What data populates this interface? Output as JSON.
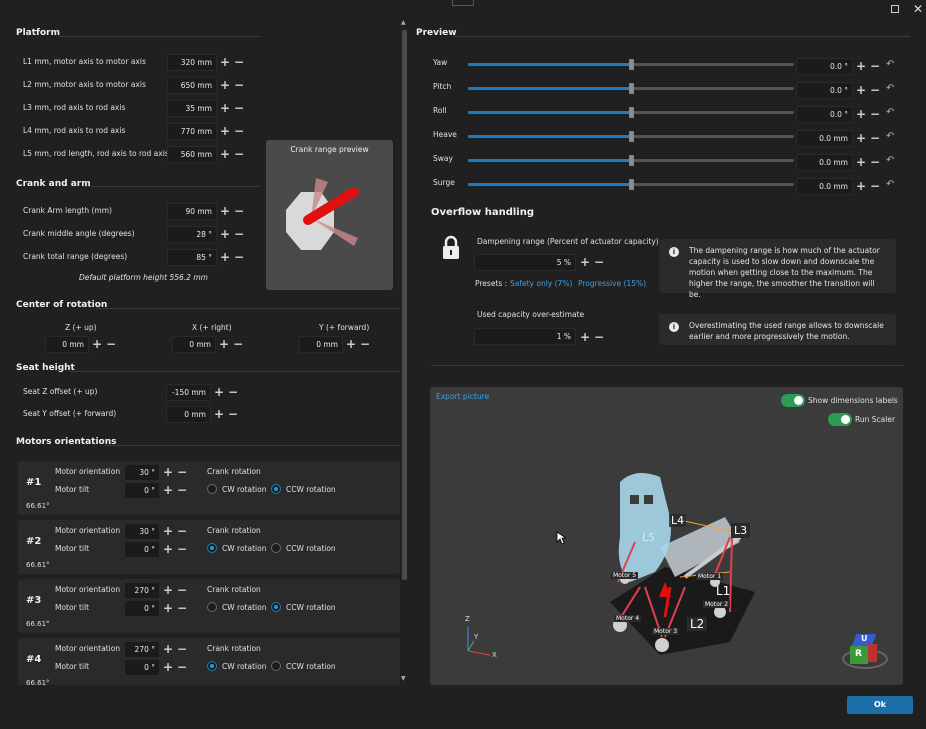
{
  "window": {
    "maximize_icon": "maximize-icon",
    "close_icon": "close-icon"
  },
  "platform": {
    "title": "Platform",
    "rows": [
      {
        "label": "L1 mm, motor axis to motor axis",
        "value": "320 mm"
      },
      {
        "label": "L2 mm, motor axis to motor axis",
        "value": "650 mm"
      },
      {
        "label": "L3 mm, rod axis to rod axis",
        "value": "35 mm"
      },
      {
        "label": "L4 mm, rod axis to rod axis",
        "value": "770 mm"
      },
      {
        "label": "L5 mm, rod length, rod axis to rod axis",
        "value": "560 mm"
      }
    ]
  },
  "crank_preview": {
    "title": "Crank range preview"
  },
  "crank": {
    "title": "Crank and arm",
    "rows": [
      {
        "label": "Crank Arm length (mm)",
        "value": "90 mm"
      },
      {
        "label": "Crank middle angle (degrees)",
        "value": "28 °"
      },
      {
        "label": "Crank total range (degrees)",
        "value": "85 °"
      }
    ],
    "default_height": "Default platform height 556.2 mm"
  },
  "center": {
    "title": "Center of rotation",
    "cols": [
      {
        "label": "Z (+ up)",
        "value": "0 mm"
      },
      {
        "label": "X (+ right)",
        "value": "0 mm"
      },
      {
        "label": "Y (+ forward)",
        "value": "0 mm"
      }
    ]
  },
  "seat": {
    "title": "Seat height",
    "rows": [
      {
        "label": "Seat Z offset (+ up)",
        "value": "-150 mm"
      },
      {
        "label": "Seat Y offset (+ forward)",
        "value": "0 mm"
      }
    ]
  },
  "motors": {
    "title": "Motors orientations",
    "orientation_label": "Motor orientation",
    "tilt_label": "Motor tilt",
    "crank_rotation_label": "Crank rotation",
    "cw_label": "CW rotation",
    "ccw_label": "CCW rotation",
    "items": [
      {
        "id": "#1",
        "orientation": "30 °",
        "tilt": "0 °",
        "angle": "66.61°",
        "cw": false,
        "ccw": true
      },
      {
        "id": "#2",
        "orientation": "30 °",
        "tilt": "0 °",
        "angle": "66.61°",
        "cw": true,
        "ccw": false
      },
      {
        "id": "#3",
        "orientation": "270 °",
        "tilt": "0 °",
        "angle": "66.61°",
        "cw": false,
        "ccw": true
      },
      {
        "id": "#4",
        "orientation": "270 °",
        "tilt": "0 °",
        "angle": "66.61°",
        "cw": true,
        "ccw": false
      }
    ]
  },
  "preview": {
    "title": "Preview",
    "axes": [
      {
        "label": "Yaw",
        "value": "0.0 °",
        "level": 0.5
      },
      {
        "label": "Pitch",
        "value": "0.0 °",
        "level": 0.5
      },
      {
        "label": "Roll",
        "value": "0.0 °",
        "level": 0.5
      },
      {
        "label": "Heave",
        "value": "0.0 mm",
        "level": 0.5
      },
      {
        "label": "Sway",
        "value": "0.0 mm",
        "level": 0.5
      },
      {
        "label": "Surge",
        "value": "0.0 mm",
        "level": 0.5
      }
    ]
  },
  "overflow": {
    "title": "Overflow handling",
    "dampening_label": "Dampening range (Percent of actuator capacity)",
    "dampening_value": "5 %",
    "presets_label": "Presets :",
    "preset_safety": "Safety only (7%)",
    "preset_progressive": "Progressive (15%)",
    "info1": "The dampening range is how much of the actuator capacity is used to slow down and downscale the motion when getting close to the maximum. The higher the range, the smoother the transition will be.",
    "overestimate_label": "Used capacity over-estimate",
    "overestimate_value": "1 %",
    "info2": "Overestimating the used range allows to downscale earlier and more progressively the motion."
  },
  "viewer": {
    "export_label": "Export picture",
    "show_dimensions_label": "Show dimensions labels",
    "run_scaler_label": "Run Scaler",
    "labels": {
      "l1": "L1",
      "l2": "L2",
      "l3": "L3",
      "l4": "L4",
      "l5": "L5"
    },
    "motors": {
      "m1": "Motor 1",
      "m2": "Motor 2",
      "m3": "Motor 3",
      "m4": "Motor 4",
      "m5": "Motor 5"
    },
    "axis": {
      "x": "X",
      "y": "Y",
      "z": "Z"
    },
    "cube": {
      "u": "U",
      "r": "R"
    }
  },
  "footer": {
    "ok_label": "Ok"
  }
}
